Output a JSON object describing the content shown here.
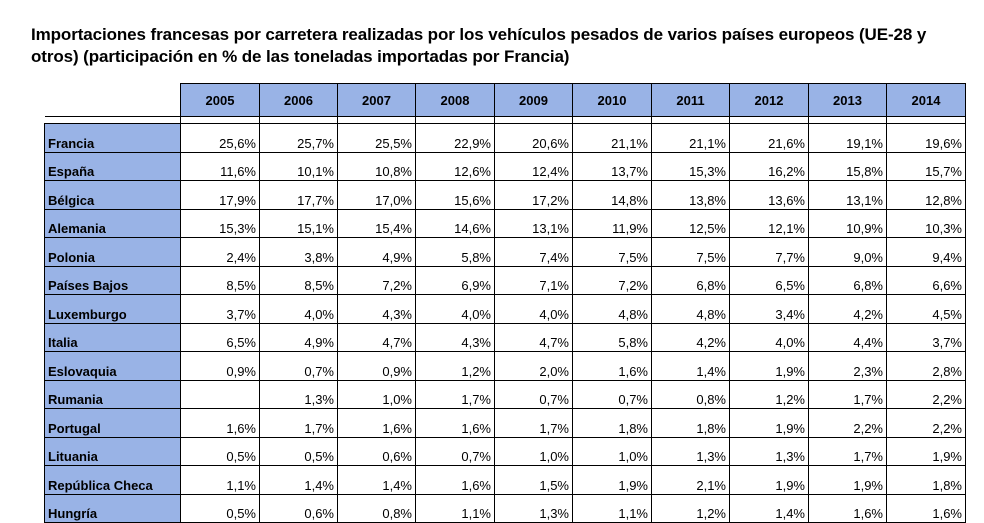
{
  "title": "Importaciones francesas por carretera realizadas por los vehículos pesados de varios países europeos (UE-28 y otros) (participación en % de las toneladas importadas por Francia)",
  "table": {
    "years": [
      "2005",
      "2006",
      "2007",
      "2008",
      "2009",
      "2010",
      "2011",
      "2012",
      "2013",
      "2014"
    ],
    "rows": [
      {
        "country": "Francia",
        "values": [
          "25,6%",
          "25,7%",
          "25,5%",
          "22,9%",
          "20,6%",
          "21,1%",
          "21,1%",
          "21,6%",
          "19,1%",
          "19,6%"
        ]
      },
      {
        "country": "España",
        "values": [
          "11,6%",
          "10,1%",
          "10,8%",
          "12,6%",
          "12,4%",
          "13,7%",
          "15,3%",
          "16,2%",
          "15,8%",
          "15,7%"
        ]
      },
      {
        "country": "Bélgica",
        "values": [
          "17,9%",
          "17,7%",
          "17,0%",
          "15,6%",
          "17,2%",
          "14,8%",
          "13,8%",
          "13,6%",
          "13,1%",
          "12,8%"
        ]
      },
      {
        "country": "Alemania",
        "values": [
          "15,3%",
          "15,1%",
          "15,4%",
          "14,6%",
          "13,1%",
          "11,9%",
          "12,5%",
          "12,1%",
          "10,9%",
          "10,3%"
        ]
      },
      {
        "country": "Polonia",
        "values": [
          "2,4%",
          "3,8%",
          "4,9%",
          "5,8%",
          "7,4%",
          "7,5%",
          "7,5%",
          "7,7%",
          "9,0%",
          "9,4%"
        ]
      },
      {
        "country": "Países Bajos",
        "values": [
          "8,5%",
          "8,5%",
          "7,2%",
          "6,9%",
          "7,1%",
          "7,2%",
          "6,8%",
          "6,5%",
          "6,8%",
          "6,6%"
        ]
      },
      {
        "country": "Luxemburgo",
        "values": [
          "3,7%",
          "4,0%",
          "4,3%",
          "4,0%",
          "4,0%",
          "4,8%",
          "4,8%",
          "3,4%",
          "4,2%",
          "4,5%"
        ]
      },
      {
        "country": "Italia",
        "values": [
          "6,5%",
          "4,9%",
          "4,7%",
          "4,3%",
          "4,7%",
          "5,8%",
          "4,2%",
          "4,0%",
          "4,4%",
          "3,7%"
        ]
      },
      {
        "country": "Eslovaquia",
        "values": [
          "0,9%",
          "0,7%",
          "0,9%",
          "1,2%",
          "2,0%",
          "1,6%",
          "1,4%",
          "1,9%",
          "2,3%",
          "2,8%"
        ]
      },
      {
        "country": "Rumania",
        "values": [
          "",
          "1,3%",
          "1,0%",
          "1,7%",
          "0,7%",
          "0,7%",
          "0,8%",
          "1,2%",
          "1,7%",
          "2,2%"
        ]
      },
      {
        "country": "Portugal",
        "values": [
          "1,6%",
          "1,7%",
          "1,6%",
          "1,6%",
          "1,7%",
          "1,8%",
          "1,8%",
          "1,9%",
          "2,2%",
          "2,2%"
        ]
      },
      {
        "country": "Lituania",
        "values": [
          "0,5%",
          "0,5%",
          "0,6%",
          "0,7%",
          "1,0%",
          "1,0%",
          "1,3%",
          "1,3%",
          "1,7%",
          "1,9%"
        ]
      },
      {
        "country": "República Checa",
        "values": [
          "1,1%",
          "1,4%",
          "1,4%",
          "1,6%",
          "1,5%",
          "1,9%",
          "2,1%",
          "1,9%",
          "1,9%",
          "1,8%"
        ]
      },
      {
        "country": "Hungría",
        "values": [
          "0,5%",
          "0,6%",
          "0,8%",
          "1,1%",
          "1,3%",
          "1,1%",
          "1,2%",
          "1,4%",
          "1,6%",
          "1,6%"
        ]
      }
    ]
  }
}
